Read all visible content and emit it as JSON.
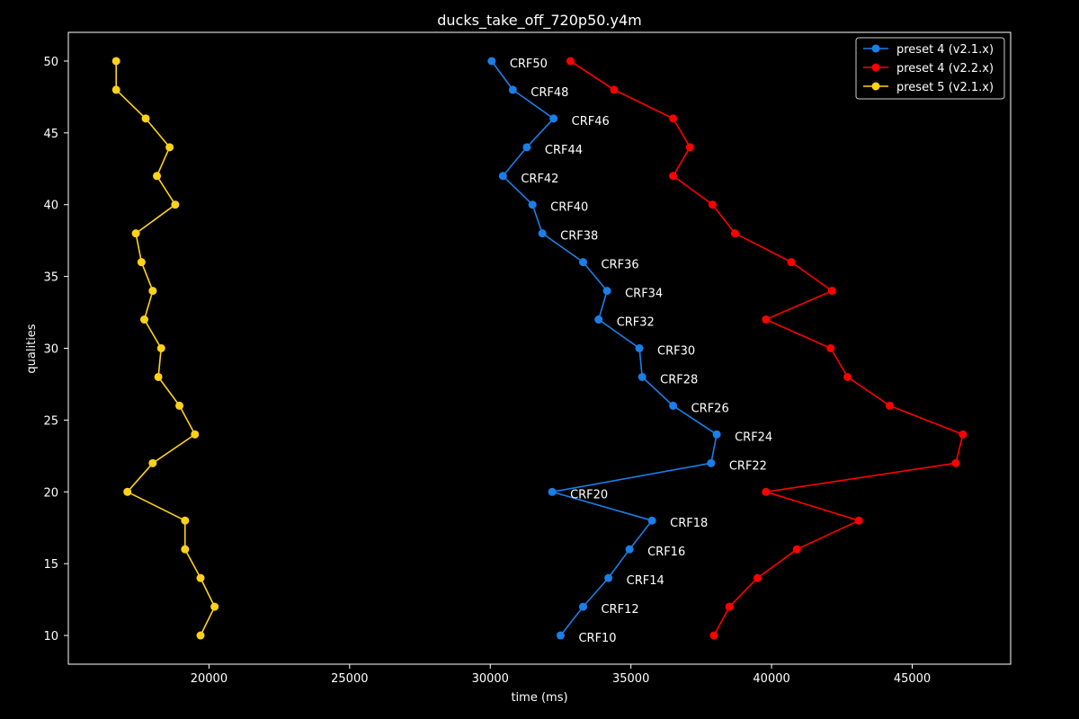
{
  "chart_data": {
    "type": "line",
    "title": "ducks_take_off_720p50.y4m",
    "xlabel": "time (ms)",
    "ylabel": "qualities",
    "xlim": [
      15000,
      48500
    ],
    "ylim": [
      8,
      52
    ],
    "xticks": [
      20000,
      25000,
      30000,
      35000,
      40000,
      45000
    ],
    "yticks": [
      10,
      15,
      20,
      25,
      30,
      35,
      40,
      45,
      50
    ],
    "grid": false,
    "legend_position": "top-right",
    "y": [
      50,
      48,
      46,
      44,
      42,
      40,
      38,
      36,
      34,
      32,
      30,
      28,
      26,
      24,
      22,
      20,
      18,
      16,
      14,
      12,
      10
    ],
    "point_labels": [
      "CRF50",
      "CRF48",
      "CRF46",
      "CRF44",
      "CRF42",
      "CRF40",
      "CRF38",
      "CRF36",
      "CRF34",
      "CRF32",
      "CRF30",
      "CRF28",
      "CRF26",
      "CRF24",
      "CRF22",
      "CRF20",
      "CRF18",
      "CRF16",
      "CRF14",
      "CRF12",
      "CRF10"
    ],
    "series": [
      {
        "name": "preset 4 (v2.1.x)",
        "color": "#1a7fe8",
        "labeled": true,
        "values": [
          30050,
          30800,
          32250,
          31300,
          30450,
          31500,
          31850,
          33300,
          34150,
          33850,
          35300,
          35400,
          36500,
          38050,
          37850,
          32200,
          35750,
          34950,
          34200,
          33300,
          32500
        ]
      },
      {
        "name": "preset 4 (v2.2.x)",
        "color": "#ff0000",
        "labeled": false,
        "values": [
          32850,
          34400,
          36500,
          37100,
          36500,
          37900,
          38700,
          40700,
          42150,
          39800,
          42100,
          42700,
          44200,
          46800,
          46550,
          39800,
          43100,
          40900,
          39500,
          38500,
          37950
        ]
      },
      {
        "name": "preset 5 (v2.1.x)",
        "color": "#ffd21a",
        "labeled": false,
        "values": [
          16700,
          16700,
          17750,
          18600,
          18150,
          18800,
          17400,
          17600,
          18000,
          17700,
          18300,
          18200,
          18950,
          19500,
          18000,
          17100,
          19150,
          19150,
          19700,
          20200,
          19700
        ]
      }
    ]
  }
}
